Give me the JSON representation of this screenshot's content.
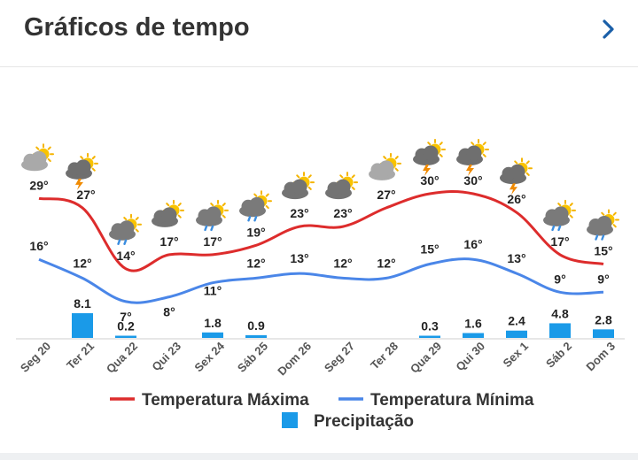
{
  "header": {
    "title": "Gráficos de tempo",
    "chevron_icon": "chevron-right-icon"
  },
  "colors": {
    "max": "#dd2c2c",
    "min": "#4a86e8",
    "precip": "#1a9ae8",
    "chevron": "#1a5fa8"
  },
  "chart_data": {
    "type": "line",
    "title": "Gráficos de tempo",
    "categories": [
      "Seg 20",
      "Ter 21",
      "Qua 22",
      "Qui 23",
      "Sex 24",
      "Sáb 25",
      "Dom 26",
      "Seg 27",
      "Ter 28",
      "Qua 29",
      "Qui 30",
      "Sex 1",
      "Sáb 2",
      "Dom 3"
    ],
    "series": [
      {
        "name": "Temperatura Máxima",
        "type": "line",
        "values": [
          29,
          27,
          14,
          17,
          17,
          19,
          23,
          23,
          27,
          30,
          30,
          26,
          17,
          15
        ],
        "labels": [
          "29°",
          "27°",
          "14°",
          "17°",
          "17°",
          "19°",
          "23°",
          "23°",
          "27°",
          "30°",
          "30°",
          "26°",
          "17°",
          "15°"
        ]
      },
      {
        "name": "Temperatura Mínima",
        "type": "line",
        "values": [
          16,
          12,
          7,
          8,
          11,
          12,
          13,
          12,
          12,
          15,
          16,
          13,
          9,
          9
        ],
        "labels": [
          "16°",
          "12°",
          "7°",
          "8°",
          "11°",
          "12°",
          "13°",
          "12°",
          "12°",
          "15°",
          "16°",
          "13°",
          "9°",
          "9°"
        ]
      },
      {
        "name": "Precipitação",
        "type": "bar",
        "values": [
          null,
          8.1,
          0.2,
          null,
          1.8,
          0.9,
          null,
          null,
          null,
          0.3,
          1.6,
          2.4,
          4.8,
          2.8
        ],
        "labels": [
          "",
          "8.1",
          "0.2",
          "",
          "1.8",
          "0.9",
          "",
          "",
          "",
          "0.3",
          "1.6",
          "2.4",
          "4.8",
          "2.8"
        ]
      }
    ],
    "weather_icons": [
      "partly-cloudy-icon",
      "cloud-lightning-icon",
      "cloud-rain-icon",
      "partly-cloudy-icon",
      "cloud-rain-icon",
      "cloud-rain-icon",
      "partly-cloudy-icon",
      "partly-cloudy-icon",
      "partly-cloudy-icon",
      "cloud-lightning-icon",
      "cloud-lightning-icon",
      "cloud-lightning-icon",
      "cloud-rain-icon",
      "cloud-rain-icon"
    ],
    "legend": [
      "Temperatura Máxima",
      "Temperatura Mínima",
      "Precipitação"
    ],
    "legend_position": "bottom"
  }
}
